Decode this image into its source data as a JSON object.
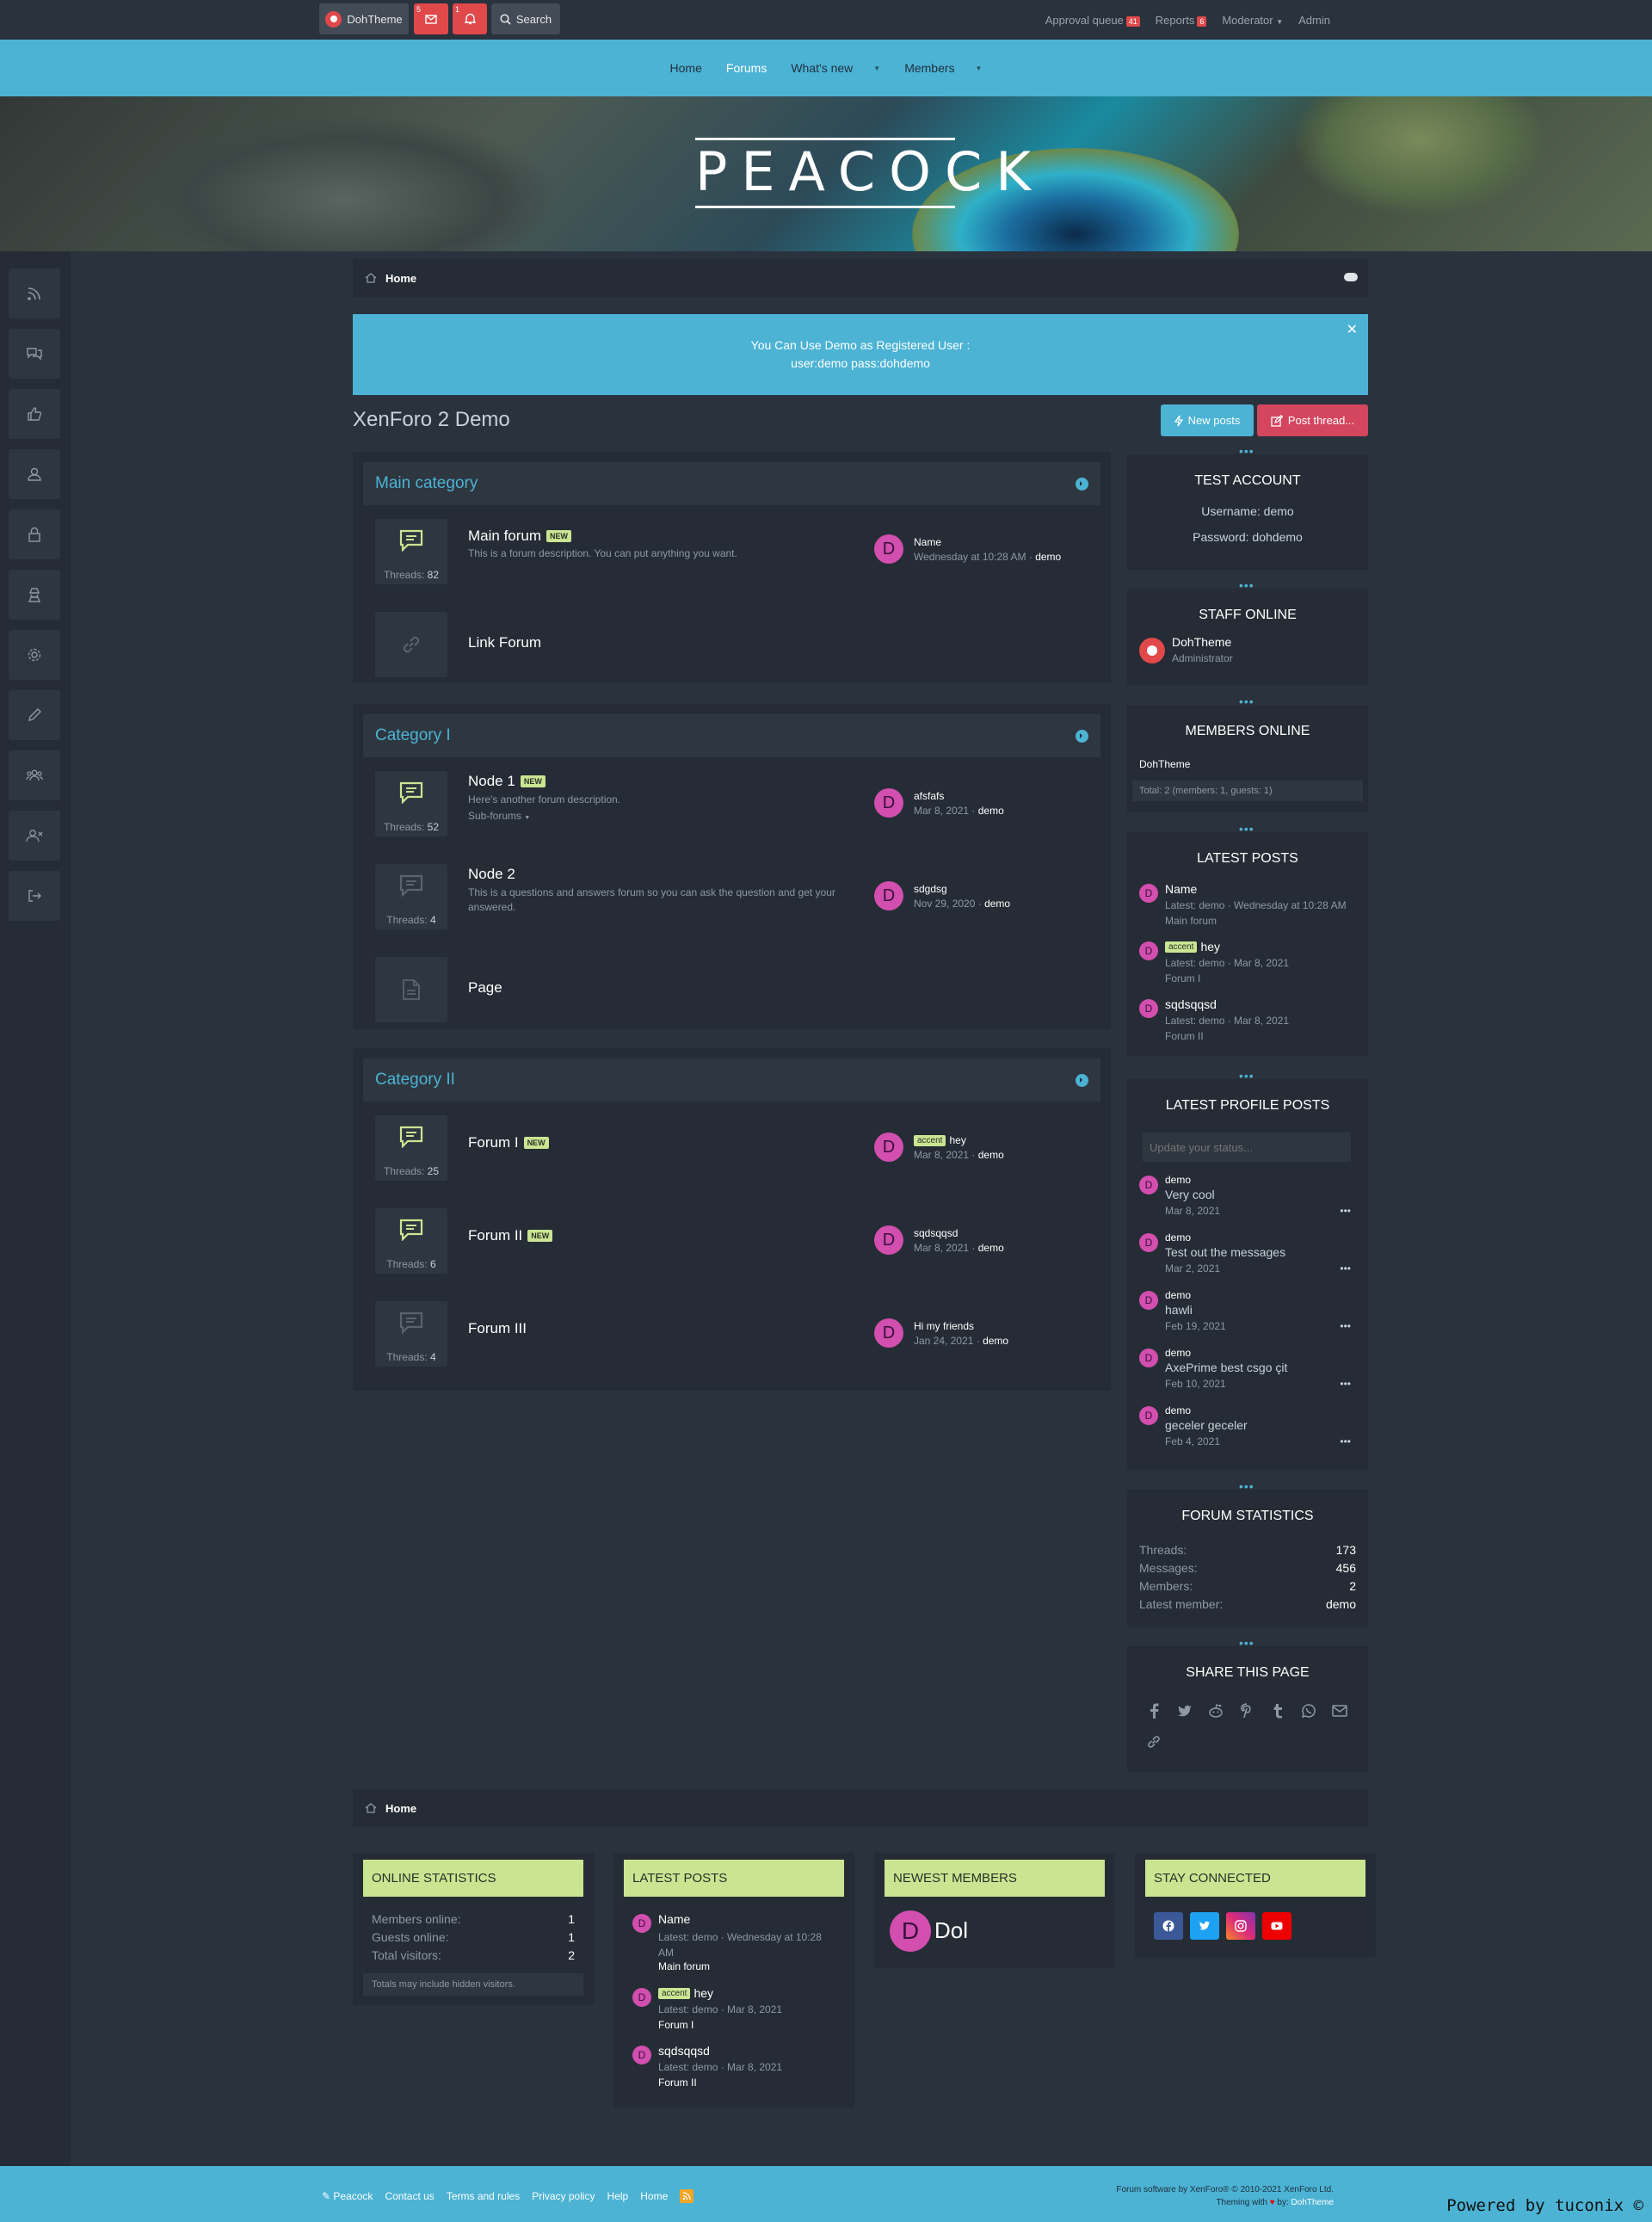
{
  "topbar": {
    "user": "DohTheme",
    "inbox_count": "5",
    "alert_count": "1",
    "search": "Search",
    "approval_queue": "Approval queue",
    "approval_count": "41",
    "reports": "Reports",
    "reports_count": "6",
    "moderator": "Moderator",
    "admin": "Admin"
  },
  "nav": [
    "Home",
    "Forums",
    "What's new",
    "Members"
  ],
  "logo": "PEACOCK",
  "breadcrumb": "Home",
  "notice": {
    "line1": "You Can Use Demo as Registered User :",
    "line2": "user:demo pass:dohdemo"
  },
  "page_title": "XenForo 2 Demo",
  "actions": {
    "new_posts": "New posts",
    "post_thread": "Post thread..."
  },
  "categories": [
    {
      "title": "Main category"
    },
    {
      "title": "Category I"
    },
    {
      "title": "Category II"
    }
  ],
  "nodes": {
    "main_forum": {
      "title": "Main forum",
      "new": "NEW",
      "desc": "This is a forum description. You can put anything you want.",
      "threads_label": "Threads:",
      "threads": "82",
      "last_title": "Name",
      "last_date": "Wednesday at 10:28 AM",
      "last_user": "demo"
    },
    "link_forum": {
      "title": "Link Forum"
    },
    "node1": {
      "title": "Node 1",
      "new": "NEW",
      "desc": "Here's another forum description.",
      "sub": "Sub-forums",
      "threads_label": "Threads:",
      "threads": "52",
      "last_title": "afsfafs",
      "last_date": "Mar 8, 2021",
      "last_user": "demo"
    },
    "node2": {
      "title": "Node 2",
      "desc": "This is a questions and answers forum so you can ask the question and get your answered.",
      "threads_label": "Threads:",
      "threads": "4",
      "last_title": "sdgdsg",
      "last_date": "Nov 29, 2020",
      "last_user": "demo"
    },
    "page": {
      "title": "Page"
    },
    "forum1": {
      "title": "Forum I",
      "new": "NEW",
      "threads_label": "Threads:",
      "threads": "25",
      "last_prefix": "accent",
      "last_title": "hey",
      "last_date": "Mar 8, 2021",
      "last_user": "demo"
    },
    "forum2": {
      "title": "Forum II",
      "new": "NEW",
      "threads_label": "Threads:",
      "threads": "6",
      "last_title": "sqdsqqsd",
      "last_date": "Mar 8, 2021",
      "last_user": "demo"
    },
    "forum3": {
      "title": "Forum III",
      "threads_label": "Threads:",
      "threads": "4",
      "last_title": "Hi my friends",
      "last_date": "Jan 24, 2021",
      "last_user": "demo"
    }
  },
  "avatar_letter": "D",
  "widgets": {
    "test_account": {
      "title": "TEST ACCOUNT",
      "username": "Username: demo",
      "password": "Password: dohdemo"
    },
    "staff_online": {
      "title": "STAFF ONLINE",
      "name": "DohTheme",
      "role": "Administrator"
    },
    "members_online": {
      "title": "MEMBERS ONLINE",
      "member": "DohTheme",
      "total": "Total: 2 (members: 1, guests: 1)"
    },
    "latest_posts": {
      "title": "LATEST POSTS",
      "items": [
        {
          "title": "Name",
          "meta": "Latest: demo · Wednesday at 10:28 AM",
          "forum": "Main forum"
        },
        {
          "prefix": "accent",
          "title": "hey",
          "meta": "Latest: demo · Mar 8, 2021",
          "forum": "Forum I"
        },
        {
          "title": "sqdsqqsd",
          "meta": "Latest: demo · Mar 8, 2021",
          "forum": "Forum II"
        }
      ]
    },
    "profile_posts": {
      "title": "LATEST PROFILE POSTS",
      "placeholder": "Update your status...",
      "items": [
        {
          "name": "demo",
          "msg": "Very cool",
          "date": "Mar 8, 2021"
        },
        {
          "name": "demo",
          "msg": "Test out the messages",
          "date": "Mar 2, 2021"
        },
        {
          "name": "demo",
          "msg": "hawli",
          "date": "Feb 19, 2021"
        },
        {
          "name": "demo",
          "msg": "AxePrime best csgo çit",
          "date": "Feb 10, 2021"
        },
        {
          "name": "demo",
          "msg": "geceler geceler",
          "date": "Feb 4, 2021"
        }
      ]
    },
    "forum_stats": {
      "title": "FORUM STATISTICS",
      "rows": [
        {
          "label": "Threads:",
          "value": "173"
        },
        {
          "label": "Messages:",
          "value": "456"
        },
        {
          "label": "Members:",
          "value": "2"
        },
        {
          "label": "Latest member:",
          "value": "demo"
        }
      ]
    },
    "share": {
      "title": "SHARE THIS PAGE"
    }
  },
  "footer_widgets": {
    "online_stats": {
      "title": "ONLINE STATISTICS",
      "rows": [
        {
          "label": "Members online:",
          "value": "1"
        },
        {
          "label": "Guests online:",
          "value": "1"
        },
        {
          "label": "Total visitors:",
          "value": "2"
        }
      ],
      "note": "Totals may include hidden visitors."
    },
    "latest_posts": {
      "title": "LATEST POSTS",
      "items": [
        {
          "title": "Name",
          "meta": "Latest: demo · Wednesday at 10:28 AM",
          "forum": "Main forum"
        },
        {
          "prefix": "accent",
          "title": "hey",
          "meta": "Latest: demo · Mar 8, 2021",
          "forum": "Forum I"
        },
        {
          "title": "sqdsqqsd",
          "meta": "Latest: demo · Mar 8, 2021",
          "forum": "Forum II"
        }
      ]
    },
    "newest_members": {
      "title": "NEWEST MEMBERS",
      "name": "Dol"
    },
    "stay_connected": {
      "title": "STAY CONNECTED"
    }
  },
  "footer": {
    "links": [
      "Peacock",
      "Contact us",
      "Terms and rules",
      "Privacy policy",
      "Help",
      "Home"
    ],
    "copyright": "Forum software by XenForo® © 2010-2021 XenForo Ltd.",
    "theming": "Theming with",
    "by": "by",
    "theme_author": "DohTheme",
    "powered": "Powered by tuconix ©"
  },
  "colors": {
    "accent": "#4cb3d4",
    "background": "#2a323d",
    "panel": "#252c35",
    "new_badge": "#cae592",
    "danger": "#d3465e",
    "avatar": "#d24eaf"
  }
}
